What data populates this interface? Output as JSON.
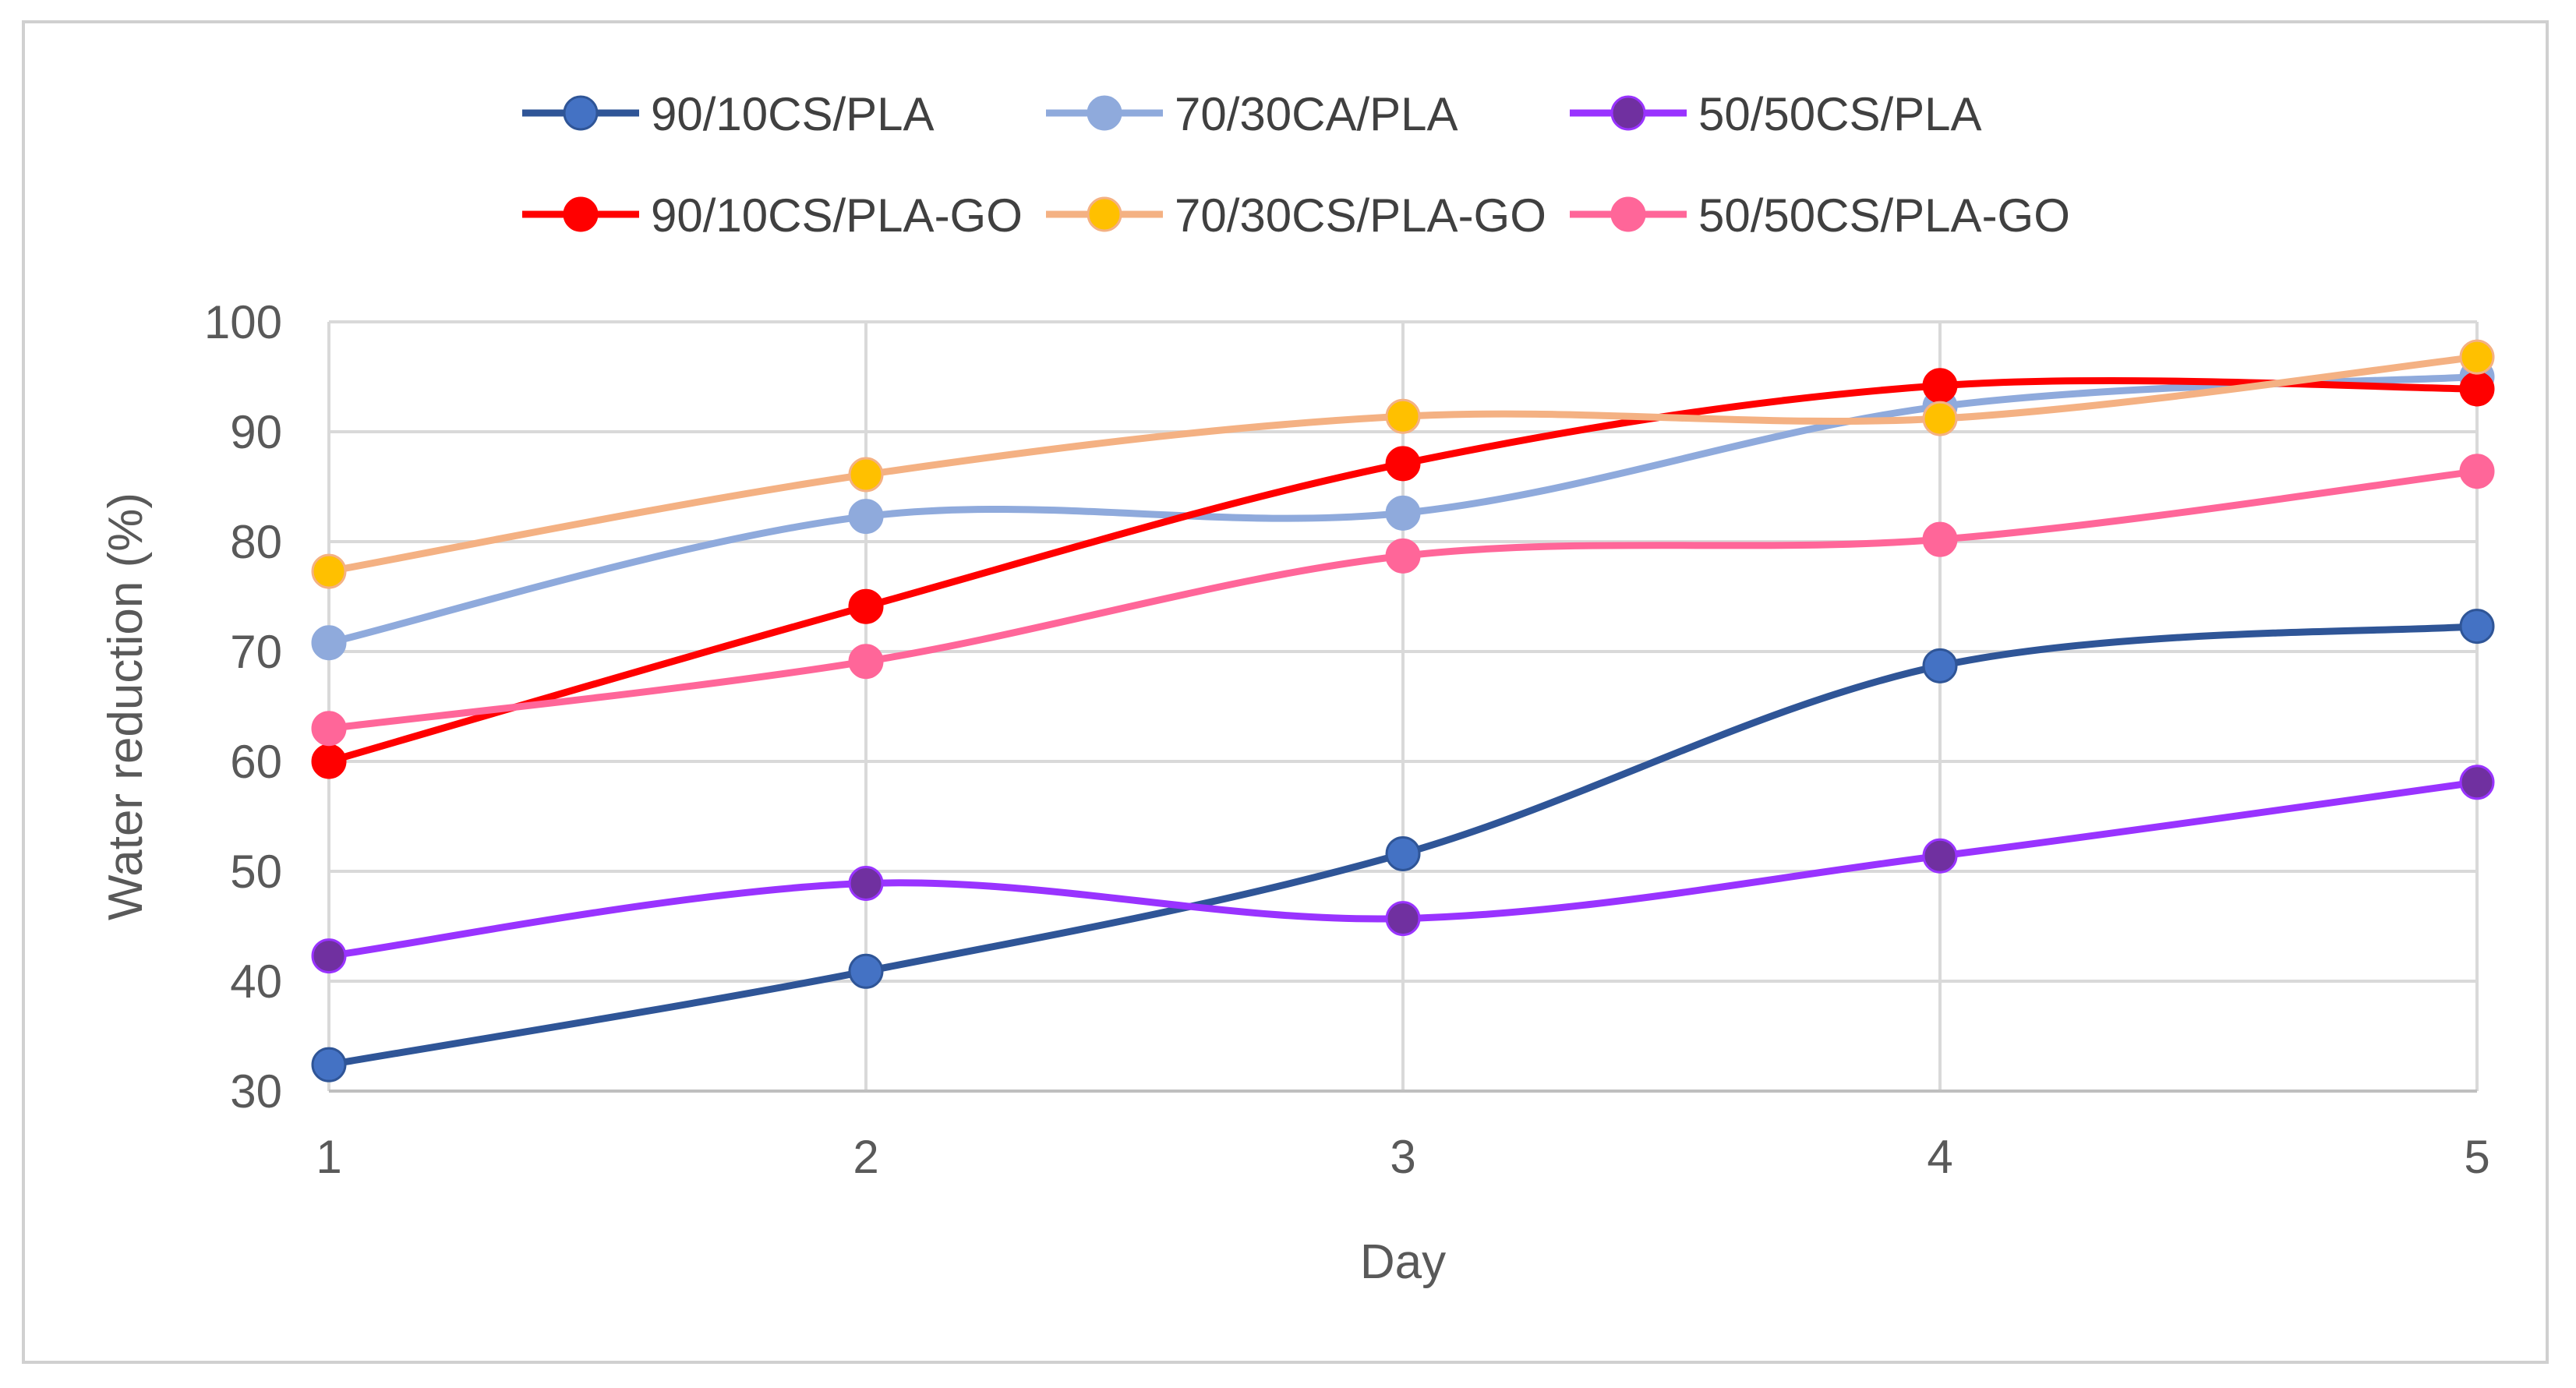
{
  "chart_data": {
    "type": "line",
    "title": "",
    "xlabel": "Day",
    "ylabel": "Water reduction (%)",
    "x": [
      1,
      2,
      3,
      4,
      5
    ],
    "xticks": [
      "1",
      "2",
      "3",
      "4",
      "5"
    ],
    "ylim": [
      30,
      100
    ],
    "yticks": [
      30,
      40,
      50,
      60,
      70,
      80,
      90,
      100
    ],
    "ytick_labels": [
      "30",
      "40",
      "50",
      "60",
      "70",
      "80",
      "90",
      "100"
    ],
    "grid": true,
    "smooth": true,
    "legend_position": "top",
    "series": [
      {
        "name": "90/10CS/PLA",
        "color": "#2f5597",
        "marker_color": "#4472c4",
        "values": [
          32.4,
          40.9,
          51.6,
          68.7,
          72.3
        ]
      },
      {
        "name": "70/30CA/PLA",
        "color": "#8faadc",
        "marker_color": "#8faadc",
        "values": [
          70.8,
          82.3,
          82.6,
          92.3,
          95.0
        ]
      },
      {
        "name": "50/50CS/PLA",
        "color": "#9933ff",
        "marker_color": "#7030a0",
        "values": [
          42.3,
          48.9,
          45.7,
          51.4,
          58.1
        ]
      },
      {
        "name": "90/10CS/PLA-GO",
        "color": "#ff0000",
        "marker_color": "#ff0000",
        "values": [
          60.0,
          74.1,
          87.1,
          94.2,
          93.9
        ]
      },
      {
        "name": "70/30CS/PLA-GO",
        "color": "#f4b183",
        "marker_color": "#ffc000",
        "values": [
          77.3,
          86.1,
          91.4,
          91.2,
          96.8
        ]
      },
      {
        "name": "50/50CS/PLA-GO",
        "color": "#ff6699",
        "marker_color": "#ff6699",
        "values": [
          63.0,
          69.1,
          78.7,
          80.2,
          86.4
        ]
      }
    ]
  }
}
